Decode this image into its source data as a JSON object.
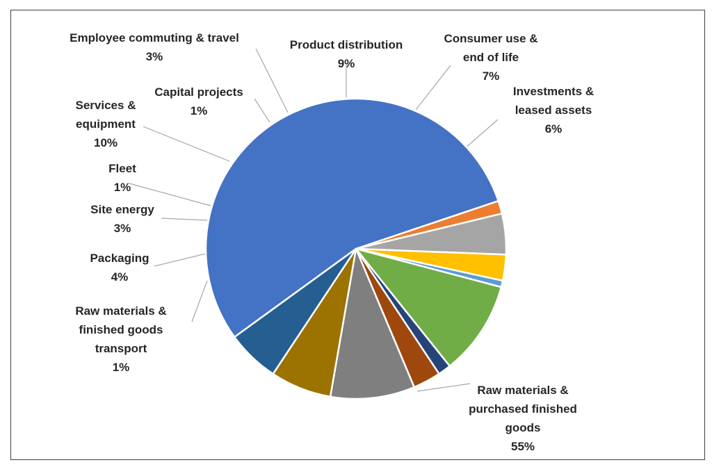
{
  "chart_data": {
    "type": "pie",
    "title": "",
    "start_angle_deg": 144,
    "direction": "clockwise",
    "slices": [
      {
        "name": "Raw materials & purchased finished goods",
        "lines": [
          "Raw materials &",
          "purchased finished",
          "goods"
        ],
        "pct_label": "55%",
        "value": 55.0,
        "color": "#4472C4"
      },
      {
        "name": "Raw materials & finished goods transport",
        "lines": [
          "Raw materials &",
          "finished goods",
          "transport"
        ],
        "pct_label": "1%",
        "value": 1.4,
        "color": "#ED7D31"
      },
      {
        "name": "Packaging",
        "lines": [
          "Packaging"
        ],
        "pct_label": "4%",
        "value": 4.4,
        "color": "#A5A5A5"
      },
      {
        "name": "Site energy",
        "lines": [
          "Site energy"
        ],
        "pct_label": "3%",
        "value": 2.8,
        "color": "#FFC000"
      },
      {
        "name": "Fleet",
        "lines": [
          "Fleet"
        ],
        "pct_label": "1%",
        "value": 0.7,
        "color": "#5B9BD5"
      },
      {
        "name": "Services & equipment",
        "lines": [
          "Services &",
          "equipment"
        ],
        "pct_label": "10%",
        "value": 10.2,
        "color": "#70AD47"
      },
      {
        "name": "Capital projects",
        "lines": [
          "Capital projects"
        ],
        "pct_label": "1%",
        "value": 1.4,
        "color": "#264478"
      },
      {
        "name": "Employee commuting & travel",
        "lines": [
          "Employee commuting & travel"
        ],
        "pct_label": "3%",
        "value": 3.0,
        "color": "#9E480E"
      },
      {
        "name": "Product distribution",
        "lines": [
          "Product distribution"
        ],
        "pct_label": "9%",
        "value": 9.1,
        "color": "#7F7F7F"
      },
      {
        "name": "Consumer use & end of life",
        "lines": [
          "Consumer use &",
          "end of life"
        ],
        "pct_label": "7%",
        "value": 6.6,
        "color": "#9C7200"
      },
      {
        "name": "Investments & leased assets",
        "lines": [
          "Investments &",
          "leased assets"
        ],
        "pct_label": "6%",
        "value": 5.7,
        "color": "#255E91"
      }
    ]
  }
}
